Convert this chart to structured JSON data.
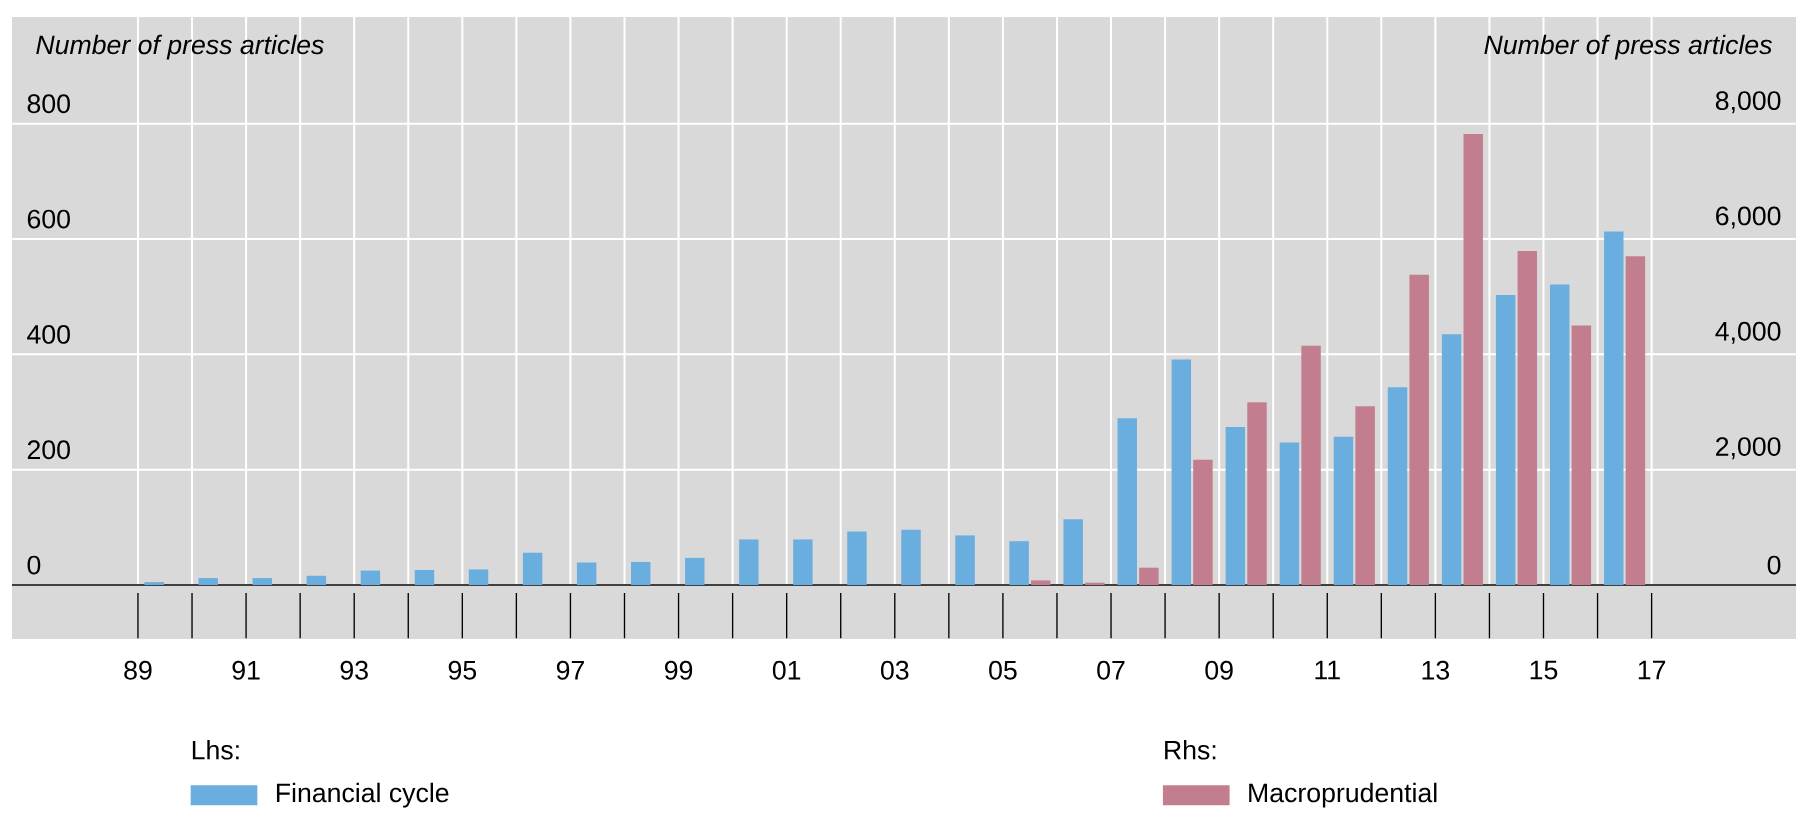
{
  "chart_data": {
    "type": "bar",
    "ylabel": "Number of press articles",
    "y2label": "Number of press articles",
    "x": [
      "1989-07",
      "1990-07",
      "1991-07",
      "1992-07",
      "1993-07",
      "1994-07",
      "1995-07",
      "1996-07",
      "1997-07",
      "1998-07",
      "1999-07",
      "2000-07",
      "2001-07",
      "2002-07",
      "2003-07",
      "2004-07",
      "2005-07",
      "2006-07",
      "2007-07",
      "2008-07",
      "2009-07",
      "2010-07",
      "2011-07",
      "2012-07",
      "2013-07",
      "2014-07",
      "2015-07",
      "2016-07"
    ],
    "series": [
      {
        "name": "Financial cycle",
        "color": "#6aaee0",
        "values": [
          5,
          12,
          12,
          16,
          25,
          26,
          27,
          56,
          39,
          40,
          47,
          79,
          79,
          93,
          96,
          86,
          76,
          114,
          289,
          391,
          274,
          247,
          257,
          343,
          435,
          503,
          521,
          613
        ]
      },
      {
        "name": "Macroprudential",
        "color": "#c27e8e",
        "axis": "y2",
        "values": [
          null,
          null,
          null,
          null,
          null,
          null,
          null,
          null,
          null,
          null,
          null,
          null,
          null,
          null,
          null,
          null,
          80,
          40,
          300,
          2170,
          3170,
          4150,
          3100,
          5380,
          7820,
          5790,
          4500,
          5700
        ]
      }
    ],
    "xlim": [
      "1986-09",
      "2019-09"
    ],
    "xticks": [
      {
        "value": "1989",
        "label": "89"
      },
      {
        "value": "1990",
        "label": null
      },
      {
        "value": "1991",
        "label": "91"
      },
      {
        "value": "1992",
        "label": null
      },
      {
        "value": "1993",
        "label": "93"
      },
      {
        "value": "1994",
        "label": null
      },
      {
        "value": "1995",
        "label": "95"
      },
      {
        "value": "1996",
        "label": null
      },
      {
        "value": "1997",
        "label": "97"
      },
      {
        "value": "1998",
        "label": null
      },
      {
        "value": "1999",
        "label": "99"
      },
      {
        "value": "2000",
        "label": null
      },
      {
        "value": "2001",
        "label": "01"
      },
      {
        "value": "2002",
        "label": null
      },
      {
        "value": "2003",
        "label": "03"
      },
      {
        "value": "2004",
        "label": null
      },
      {
        "value": "2005",
        "label": "05"
      },
      {
        "value": "2006",
        "label": null
      },
      {
        "value": "2007",
        "label": "07"
      },
      {
        "value": "2008",
        "label": null
      },
      {
        "value": "2009",
        "label": "09"
      },
      {
        "value": "2010",
        "label": null
      },
      {
        "value": "2011",
        "label": "11"
      },
      {
        "value": "2012",
        "label": null
      },
      {
        "value": "2013",
        "label": "13"
      },
      {
        "value": "2014",
        "label": null
      },
      {
        "value": "2015",
        "label": "15"
      },
      {
        "value": "2016",
        "label": null
      },
      {
        "value": "2017",
        "label": "17"
      }
    ],
    "ylim": [
      0,
      985
    ],
    "yticks": [
      0,
      200,
      400,
      600,
      800
    ],
    "y2lim": [
      0,
      9850
    ],
    "y2ticks": [
      0,
      {
        "value": 2000,
        "label": "2,000"
      },
      {
        "value": 4000,
        "label": "4,000"
      },
      {
        "value": 6000,
        "label": "6,000"
      },
      {
        "value": 8000,
        "label": "8,000"
      }
    ],
    "grid": true,
    "legend": "bottom",
    "annotations": [
      "Lhs:",
      "Rhs:"
    ]
  }
}
